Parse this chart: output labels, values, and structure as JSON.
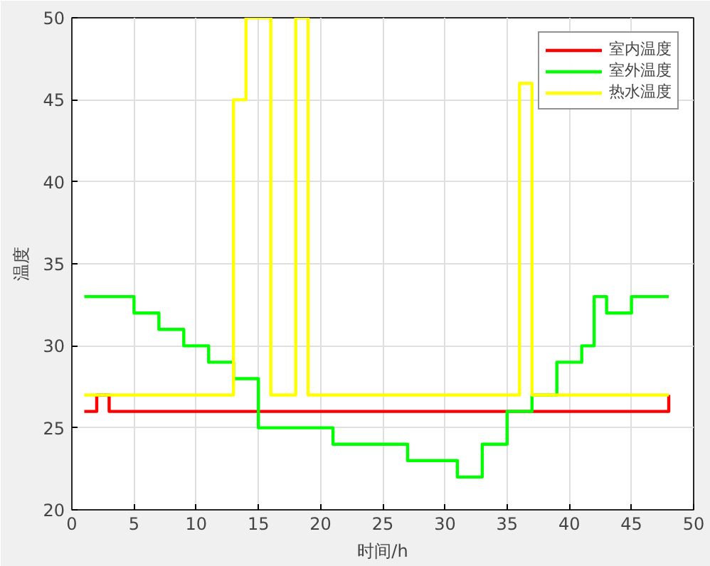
{
  "chart_data": {
    "type": "step",
    "xlabel": "时间/h",
    "ylabel": "温度",
    "x": [
      1,
      2,
      3,
      4,
      5,
      6,
      7,
      8,
      9,
      10,
      11,
      12,
      13,
      14,
      15,
      16,
      17,
      18,
      19,
      20,
      21,
      22,
      23,
      24,
      25,
      26,
      27,
      28,
      29,
      30,
      31,
      32,
      33,
      34,
      35,
      36,
      37,
      38,
      39,
      40,
      41,
      42,
      43,
      44,
      45,
      46,
      47,
      48
    ],
    "series": [
      {
        "name": "室内温度",
        "color": "#ff0000",
        "values": [
          26,
          27,
          26,
          26,
          26,
          26,
          26,
          26,
          26,
          26,
          26,
          26,
          26,
          26,
          26,
          26,
          26,
          26,
          26,
          26,
          26,
          26,
          26,
          26,
          26,
          26,
          26,
          26,
          26,
          26,
          26,
          26,
          26,
          26,
          26,
          26,
          26,
          26,
          26,
          26,
          26,
          26,
          26,
          26,
          26,
          26,
          26,
          27
        ]
      },
      {
        "name": "室外温度",
        "color": "#00ff00",
        "values": [
          33,
          33,
          33,
          33,
          32,
          32,
          31,
          31,
          30,
          30,
          29,
          29,
          28,
          28,
          25,
          25,
          25,
          25,
          25,
          25,
          24,
          24,
          24,
          24,
          24,
          24,
          23,
          23,
          23,
          23,
          22,
          22,
          24,
          24,
          26,
          26,
          27,
          27,
          29,
          29,
          30,
          33,
          32,
          32,
          33,
          33,
          33,
          33
        ]
      },
      {
        "name": "热水温度",
        "color": "#ffff00",
        "values": [
          27,
          27,
          27,
          27,
          27,
          27,
          27,
          27,
          27,
          27,
          27,
          27,
          45,
          50,
          50,
          27,
          27,
          50,
          27,
          27,
          27,
          27,
          27,
          27,
          27,
          27,
          27,
          27,
          27,
          27,
          27,
          27,
          27,
          27,
          27,
          46,
          27,
          27,
          27,
          27,
          27,
          27,
          27,
          27,
          27,
          27,
          27,
          27
        ]
      }
    ],
    "xlim": [
      0,
      50
    ],
    "ylim": [
      20,
      50
    ],
    "xticks": [
      0,
      5,
      10,
      15,
      20,
      25,
      30,
      35,
      40,
      45,
      50
    ],
    "yticks": [
      20,
      25,
      30,
      35,
      40,
      45,
      50
    ],
    "grid": true,
    "legend": "top right",
    "line_style": "solid"
  }
}
